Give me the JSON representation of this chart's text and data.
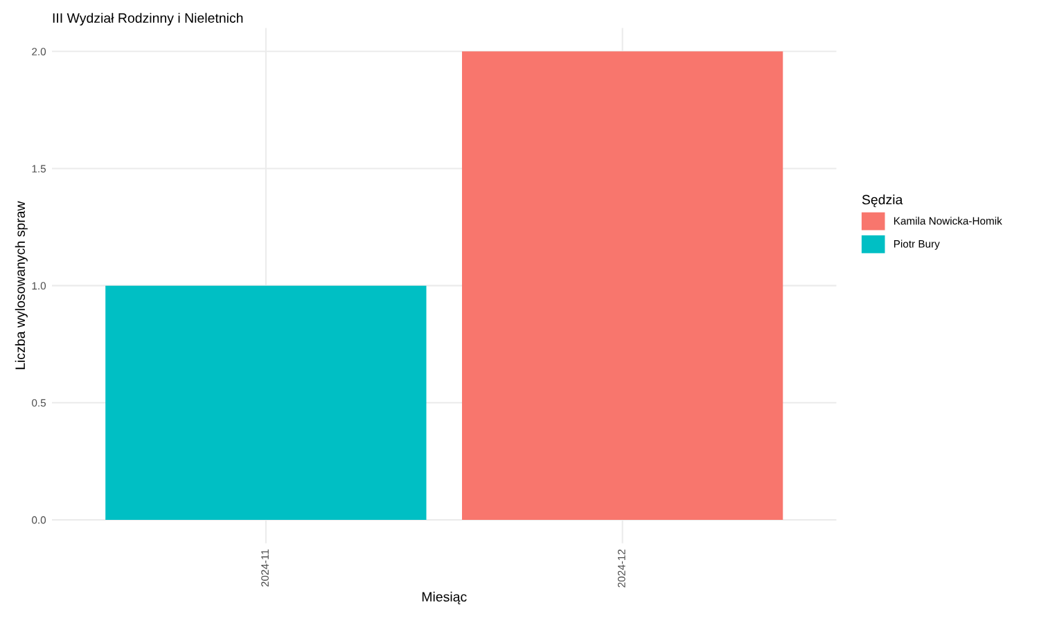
{
  "chart_data": {
    "type": "bar",
    "title": "III Wydział Rodzinny i Nieletnich",
    "xlabel": "Miesiąc",
    "ylabel": "Liczba wylosowanych spraw",
    "legend_title": "Sędzia",
    "categories": [
      "2024-11",
      "2024-12"
    ],
    "series": [
      {
        "name": "Kamila Nowicka-Homik",
        "color": "#f8766d",
        "values": [
          null,
          2
        ]
      },
      {
        "name": "Piotr Bury",
        "color": "#00bfc4",
        "values": [
          1,
          null
        ]
      }
    ],
    "ylim": [
      -0.1,
      2.1
    ],
    "yticks": [
      {
        "value": 0,
        "label": "0.0"
      },
      {
        "value": 0.5,
        "label": "0.5"
      },
      {
        "value": 1,
        "label": "1.0"
      },
      {
        "value": 1.5,
        "label": "1.5"
      },
      {
        "value": 2,
        "label": "2.0"
      }
    ],
    "grid": true,
    "legend": "right"
  }
}
